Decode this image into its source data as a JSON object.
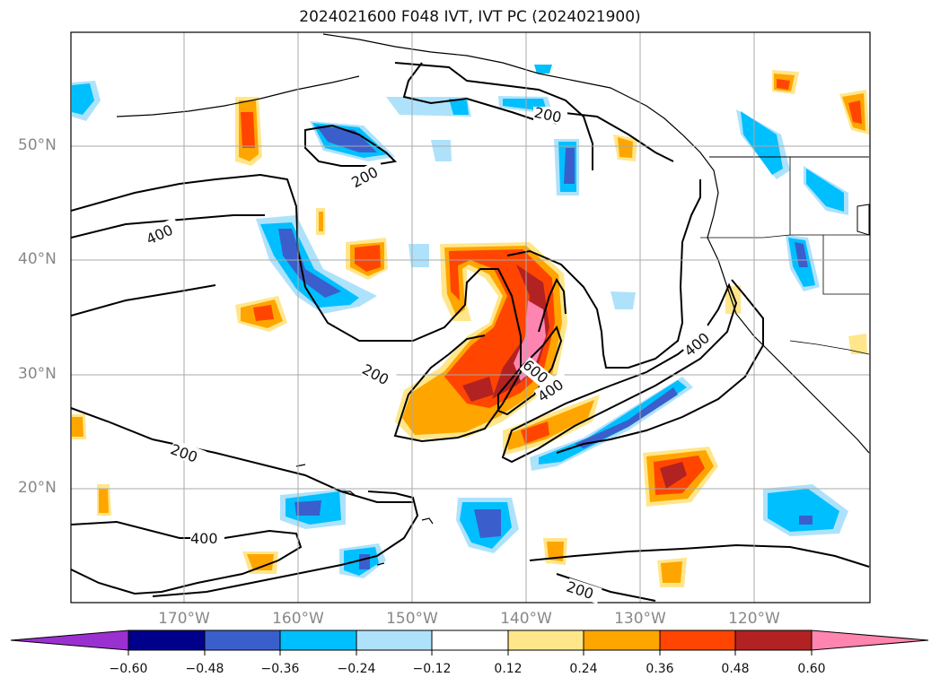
{
  "title": "2024021600 F048 IVT, IVT PC (2024021900)",
  "latitudes": [
    "50°N",
    "40°N",
    "30°N",
    "20°N"
  ],
  "longitudes": [
    "170°W",
    "160°W",
    "150°W",
    "140°W",
    "130°W",
    "120°W"
  ],
  "contour_labels": [
    "200",
    "200",
    "400",
    "200",
    "200",
    "400",
    "400",
    "600",
    "400",
    "200"
  ],
  "colorbar": {
    "ticks": [
      "−0.60",
      "−0.48",
      "−0.36",
      "−0.24",
      "−0.12",
      "0.12",
      "0.24",
      "0.36",
      "0.48",
      "0.60"
    ],
    "colors": [
      "#9b30d0",
      "#00008b",
      "#3a5fcd",
      "#00bfff",
      "#aee2fb",
      "#ffffff",
      "#ffe68a",
      "#ffa500",
      "#ff4500",
      "#b22222",
      "#ff85b0"
    ]
  }
}
